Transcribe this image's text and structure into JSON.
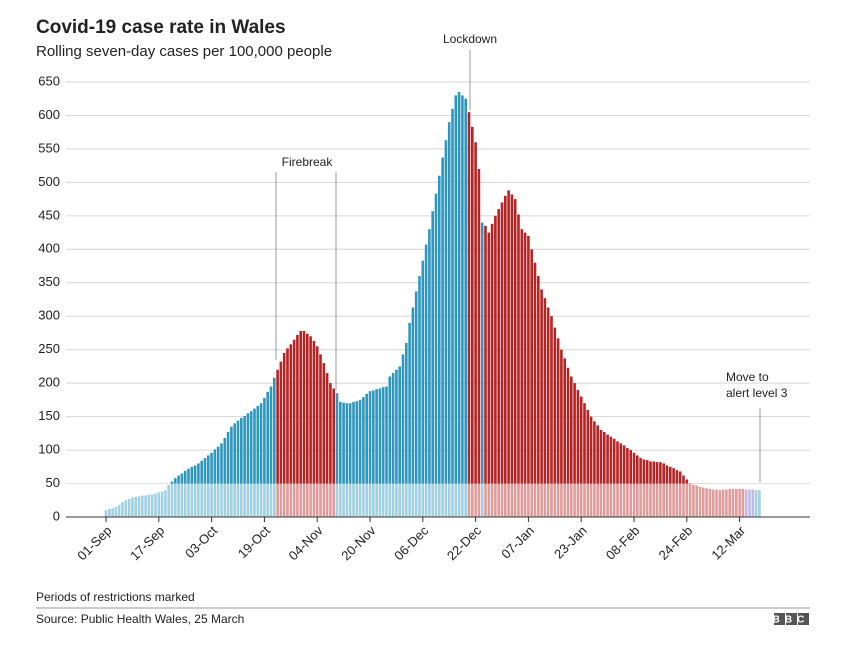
{
  "chart_data": {
    "type": "bar",
    "title": "Covid-19 case rate in Wales",
    "subtitle": "Rolling seven-day cases per 100,000 people",
    "annotations": {
      "firebreak": "Firebreak",
      "lockdown": "Lockdown",
      "alert": [
        "Move to",
        "alert level 3"
      ]
    },
    "note": "Periods of restrictions marked",
    "source": "Source: Public Health Wales, 25 March",
    "logo": "BBC",
    "categories": [
      "01-Sep",
      null,
      null,
      null,
      null,
      null,
      null,
      null,
      null,
      null,
      null,
      null,
      null,
      null,
      null,
      null,
      "17-Sep",
      null,
      null,
      null,
      null,
      null,
      null,
      null,
      null,
      null,
      null,
      null,
      null,
      null,
      null,
      null,
      "03-Oct",
      null,
      null,
      null,
      null,
      null,
      null,
      null,
      null,
      null,
      null,
      null,
      null,
      null,
      null,
      null,
      "19-Oct",
      null,
      null,
      null,
      null,
      null,
      null,
      null,
      null,
      null,
      null,
      null,
      null,
      null,
      null,
      null,
      "04-Nov",
      null,
      null,
      null,
      null,
      null,
      null,
      null,
      null,
      null,
      null,
      null,
      null,
      null,
      null,
      null,
      "20-Nov",
      null,
      null,
      null,
      null,
      null,
      null,
      null,
      null,
      null,
      null,
      null,
      null,
      null,
      null,
      null,
      "06-Dec",
      null,
      null,
      null,
      null,
      null,
      null,
      null,
      null,
      null,
      null,
      null,
      null,
      null,
      null,
      null,
      "22-Dec",
      null,
      null,
      null,
      null,
      null,
      null,
      null,
      null,
      null,
      null,
      null,
      null,
      null,
      null,
      null,
      "07-Jan",
      null,
      null,
      null,
      null,
      null,
      null,
      null,
      null,
      null,
      null,
      null,
      null,
      null,
      null,
      null,
      "23-Jan",
      null,
      null,
      null,
      null,
      null,
      null,
      null,
      null,
      null,
      null,
      null,
      null,
      null,
      null,
      null,
      "08-Feb",
      null,
      null,
      null,
      null,
      null,
      null,
      null,
      null,
      null,
      null,
      null,
      null,
      null,
      null,
      null,
      "24-Feb",
      null,
      null,
      null,
      null,
      null,
      null,
      null,
      null,
      null,
      null,
      null,
      null,
      null,
      null,
      null,
      "12-Mar",
      null,
      null,
      null,
      null,
      null,
      null
    ],
    "values": [
      10,
      12,
      13,
      15,
      18,
      22,
      25,
      27,
      29,
      30,
      31,
      32,
      32,
      33,
      34,
      35,
      37,
      38,
      40,
      48,
      53,
      58,
      62,
      65,
      69,
      72,
      75,
      77,
      80,
      84,
      88,
      92,
      96,
      101,
      105,
      110,
      118,
      127,
      135,
      140,
      144,
      148,
      151,
      155,
      158,
      162,
      166,
      170,
      178,
      187,
      195,
      208,
      220,
      232,
      245,
      252,
      258,
      265,
      272,
      278,
      278,
      274,
      270,
      263,
      255,
      243,
      230,
      215,
      200,
      192,
      185,
      172,
      171,
      170,
      170,
      172,
      173,
      175,
      179,
      184,
      188,
      189,
      191,
      192,
      194,
      195,
      210,
      215,
      220,
      225,
      243,
      260,
      290,
      313,
      337,
      360,
      383,
      407,
      430,
      457,
      483,
      510,
      537,
      563,
      590,
      610,
      630,
      635,
      630,
      625,
      605,
      583,
      560,
      520,
      440,
      435,
      425,
      438,
      450,
      460,
      470,
      480,
      488,
      482,
      475,
      452,
      430,
      425,
      420,
      400,
      380,
      360,
      340,
      327,
      313,
      300,
      283,
      267,
      250,
      237,
      223,
      210,
      200,
      190,
      180,
      170,
      160,
      150,
      143,
      137,
      130,
      127,
      123,
      120,
      117,
      113,
      110,
      107,
      103,
      100,
      96,
      92,
      88,
      86,
      85,
      83,
      83,
      82,
      82,
      80,
      77,
      75,
      73,
      70,
      68,
      62,
      56,
      50,
      48,
      47,
      45,
      44,
      43,
      42,
      41,
      41,
      40,
      41,
      41,
      42,
      42,
      42,
      42,
      42,
      41,
      41,
      41,
      40,
      40
    ],
    "palette": {
      "b": "#2f97bd",
      "r": "#b52424",
      "p": "#7466c8"
    },
    "bar_colors": "bbbbbbbbbbbbbbbbbbbbbbbbbbbbbbbbbbbbbbbbbbbbbbbbbbbbrrrrrrrrrrrrrrrrrrbbbbbbbbbbbbbbbbbbbbbbbbbbbbbbbbbbbbbbbbrrrrbrrrrrrrrrrrrrrrrrrrrrrrrrrrrrrrrrrrrrrrrrrrrrrrrrrrrrrrrrrrrrrrrrrrrrrrrrrrrrrrppp",
    "ylim": [
      0,
      650
    ],
    "yticks": [
      0,
      50,
      100,
      150,
      200,
      250,
      300,
      350,
      400,
      450,
      500,
      550,
      600,
      650
    ],
    "grid": true
  }
}
